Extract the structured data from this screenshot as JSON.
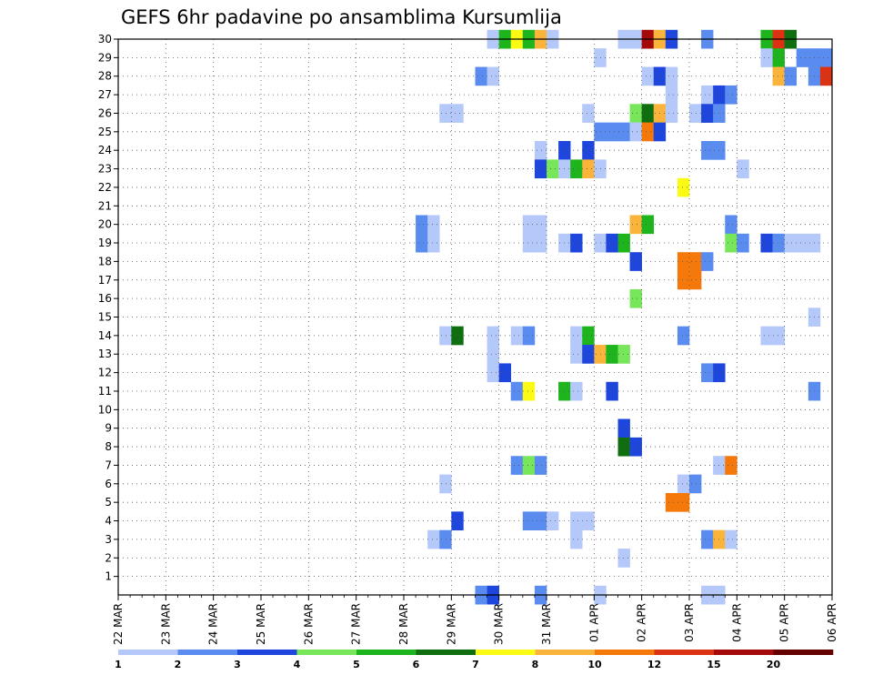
{
  "chart_data": {
    "type": "heatmap",
    "title": "GEFS 6hr padavine po ansamblima Kursumlija",
    "xlabel": "",
    "ylabel": "",
    "y_range": [
      0,
      30
    ],
    "y_ticks": [
      1,
      2,
      3,
      4,
      5,
      6,
      7,
      8,
      9,
      10,
      11,
      12,
      13,
      14,
      15,
      16,
      17,
      18,
      19,
      20,
      21,
      22,
      23,
      24,
      25,
      26,
      27,
      28,
      29,
      30
    ],
    "x_ticks": [
      "22 MAR",
      "23 MAR",
      "24 MAR",
      "25 MAR",
      "26 MAR",
      "27 MAR",
      "28 MAR",
      "29 MAR",
      "30 MAR",
      "31 MAR",
      "01 APR",
      "02 APR",
      "03 APR",
      "04 APR",
      "05 APR",
      "06 APR"
    ],
    "x_range": [
      0,
      60
    ],
    "grid": true,
    "colorbar": {
      "labels": [
        "1",
        "2",
        "3",
        "4",
        "5",
        "6",
        "7",
        "8",
        "10",
        "12",
        "15",
        "20"
      ],
      "colors": [
        "#b4c8fa",
        "#5a8cf0",
        "#1e46dc",
        "#78e65a",
        "#1eb41e",
        "#0f6e0f",
        "#fafa14",
        "#fab43c",
        "#f5780a",
        "#dc3214",
        "#a50a0a",
        "#640000"
      ]
    },
    "cells": [
      [
        31,
        30,
        0
      ],
      [
        32,
        30,
        4
      ],
      [
        33,
        30,
        6
      ],
      [
        34,
        30,
        4
      ],
      [
        35,
        30,
        7
      ],
      [
        36,
        30,
        0
      ],
      [
        42,
        30,
        0
      ],
      [
        43,
        30,
        0
      ],
      [
        44,
        30,
        10
      ],
      [
        45,
        30,
        7
      ],
      [
        46,
        30,
        2
      ],
      [
        49,
        30,
        1
      ],
      [
        54,
        30,
        4
      ],
      [
        55,
        30,
        9
      ],
      [
        56,
        30,
        5
      ],
      [
        40,
        29,
        0
      ],
      [
        54,
        29,
        0
      ],
      [
        55,
        29,
        4
      ],
      [
        57,
        29,
        1
      ],
      [
        58,
        29,
        1
      ],
      [
        59,
        29,
        1
      ],
      [
        30,
        28,
        1
      ],
      [
        31,
        28,
        0
      ],
      [
        44,
        28,
        0
      ],
      [
        45,
        28,
        2
      ],
      [
        46,
        28,
        0
      ],
      [
        55,
        28,
        7
      ],
      [
        56,
        28,
        1
      ],
      [
        58,
        28,
        1
      ],
      [
        59,
        28,
        9
      ],
      [
        46,
        27,
        0
      ],
      [
        49,
        27,
        0
      ],
      [
        50,
        27,
        2
      ],
      [
        51,
        27,
        1
      ],
      [
        27,
        26,
        0
      ],
      [
        28,
        26,
        0
      ],
      [
        39,
        26,
        0
      ],
      [
        43,
        26,
        3
      ],
      [
        44,
        26,
        5
      ],
      [
        45,
        26,
        7
      ],
      [
        46,
        26,
        0
      ],
      [
        48,
        26,
        0
      ],
      [
        49,
        26,
        2
      ],
      [
        50,
        26,
        1
      ],
      [
        40,
        25,
        1
      ],
      [
        41,
        25,
        1
      ],
      [
        42,
        25,
        1
      ],
      [
        43,
        25,
        0
      ],
      [
        44,
        25,
        8
      ],
      [
        45,
        25,
        2
      ],
      [
        35,
        24,
        0
      ],
      [
        37,
        24,
        2
      ],
      [
        39,
        24,
        2
      ],
      [
        49,
        24,
        1
      ],
      [
        50,
        24,
        1
      ],
      [
        35,
        23,
        2
      ],
      [
        36,
        23,
        3
      ],
      [
        37,
        23,
        0
      ],
      [
        38,
        23,
        4
      ],
      [
        39,
        23,
        7
      ],
      [
        40,
        23,
        0
      ],
      [
        52,
        23,
        0
      ],
      [
        47,
        22,
        6
      ],
      [
        43,
        20,
        7
      ],
      [
        44,
        20,
        4
      ],
      [
        25,
        20,
        1
      ],
      [
        26,
        20,
        0
      ],
      [
        34,
        20,
        0
      ],
      [
        35,
        20,
        0
      ],
      [
        51,
        20,
        1
      ],
      [
        25,
        19,
        1
      ],
      [
        26,
        19,
        0
      ],
      [
        34,
        19,
        0
      ],
      [
        35,
        19,
        0
      ],
      [
        37,
        19,
        0
      ],
      [
        38,
        19,
        2
      ],
      [
        40,
        19,
        0
      ],
      [
        41,
        19,
        2
      ],
      [
        42,
        19,
        4
      ],
      [
        51,
        19,
        3
      ],
      [
        52,
        19,
        1
      ],
      [
        54,
        19,
        2
      ],
      [
        55,
        19,
        1
      ],
      [
        56,
        19,
        0
      ],
      [
        57,
        19,
        0
      ],
      [
        58,
        19,
        0
      ],
      [
        43,
        18,
        2
      ],
      [
        47,
        18,
        8
      ],
      [
        48,
        18,
        8
      ],
      [
        49,
        18,
        1
      ],
      [
        47,
        17,
        8
      ],
      [
        48,
        17,
        8
      ],
      [
        43,
        16,
        3
      ],
      [
        58,
        15,
        0
      ],
      [
        27,
        14,
        0
      ],
      [
        28,
        14,
        5
      ],
      [
        31,
        14,
        0
      ],
      [
        33,
        14,
        0
      ],
      [
        34,
        14,
        1
      ],
      [
        38,
        14,
        0
      ],
      [
        39,
        14,
        4
      ],
      [
        47,
        14,
        1
      ],
      [
        54,
        14,
        0
      ],
      [
        55,
        14,
        0
      ],
      [
        31,
        13,
        0
      ],
      [
        38,
        13,
        0
      ],
      [
        39,
        13,
        2
      ],
      [
        40,
        13,
        7
      ],
      [
        41,
        13,
        4
      ],
      [
        42,
        13,
        3
      ],
      [
        31,
        12,
        0
      ],
      [
        32,
        12,
        2
      ],
      [
        49,
        12,
        1
      ],
      [
        50,
        12,
        2
      ],
      [
        33,
        11,
        1
      ],
      [
        34,
        11,
        6
      ],
      [
        37,
        11,
        4
      ],
      [
        38,
        11,
        0
      ],
      [
        41,
        11,
        2
      ],
      [
        58,
        11,
        1
      ],
      [
        42,
        9,
        2
      ],
      [
        42,
        8,
        5
      ],
      [
        43,
        8,
        2
      ],
      [
        33,
        7,
        1
      ],
      [
        34,
        7,
        3
      ],
      [
        35,
        7,
        1
      ],
      [
        50,
        7,
        0
      ],
      [
        51,
        7,
        8
      ],
      [
        27,
        6,
        0
      ],
      [
        47,
        6,
        0
      ],
      [
        48,
        6,
        1
      ],
      [
        46,
        5,
        8
      ],
      [
        47,
        5,
        8
      ],
      [
        28,
        4,
        2
      ],
      [
        34,
        4,
        1
      ],
      [
        35,
        4,
        1
      ],
      [
        36,
        4,
        0
      ],
      [
        38,
        4,
        0
      ],
      [
        39,
        4,
        0
      ],
      [
        26,
        3,
        0
      ],
      [
        27,
        3,
        1
      ],
      [
        38,
        3,
        0
      ],
      [
        49,
        3,
        1
      ],
      [
        50,
        3,
        7
      ],
      [
        51,
        3,
        0
      ],
      [
        42,
        2,
        0
      ],
      [
        30,
        0,
        1
      ],
      [
        31,
        0,
        2
      ],
      [
        35,
        0,
        1
      ],
      [
        40,
        0,
        0
      ],
      [
        49,
        0,
        0
      ],
      [
        50,
        0,
        0
      ]
    ]
  }
}
